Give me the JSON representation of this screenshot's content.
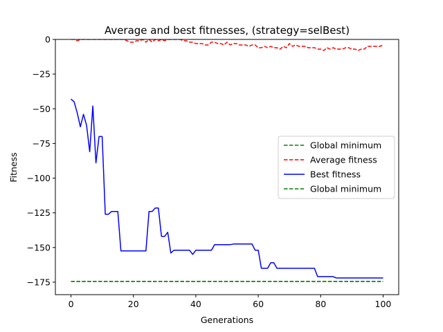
{
  "chart_data": {
    "type": "line",
    "title": "Average and best fitnesses, (strategy=selBest)",
    "xlabel": "Generations",
    "ylabel": "Fitness",
    "xlim": [
      -5,
      105
    ],
    "ylim": [
      -184,
      0
    ],
    "xticks": [
      0,
      20,
      40,
      60,
      80,
      100
    ],
    "yticks": [
      0,
      -25,
      -50,
      -75,
      -100,
      -125,
      -150,
      -175
    ],
    "ytick_labels": [
      "0",
      "−25",
      "−50",
      "−75",
      "−100",
      "−125",
      "−150",
      "−175"
    ],
    "grid": false,
    "legend_position": "center-right",
    "series": [
      {
        "name": "Global minimum",
        "style": "dashed",
        "color": "#008000",
        "x": [
          0,
          100
        ],
        "y": [
          -174.5,
          -174.5
        ]
      },
      {
        "name": "Average fitness",
        "style": "dashed",
        "color": "#ff0000",
        "x": [
          0,
          1,
          2,
          3,
          4,
          5,
          6,
          7,
          8,
          9,
          10,
          11,
          12,
          13,
          14,
          15,
          16,
          17,
          18,
          19,
          20,
          21,
          22,
          23,
          24,
          25,
          26,
          27,
          28,
          29,
          30,
          31,
          32,
          33,
          34,
          35,
          36,
          37,
          38,
          39,
          40,
          41,
          42,
          43,
          44,
          45,
          46,
          47,
          48,
          49,
          50,
          51,
          52,
          53,
          54,
          55,
          56,
          57,
          58,
          59,
          60,
          61,
          62,
          63,
          64,
          65,
          66,
          67,
          68,
          69,
          70,
          71,
          72,
          73,
          74,
          75,
          76,
          77,
          78,
          79,
          80,
          81,
          82,
          83,
          84,
          85,
          86,
          87,
          88,
          89,
          90,
          91,
          92,
          93,
          94,
          95,
          96,
          97,
          98,
          99,
          100
        ],
        "y": [
          0,
          0,
          -1,
          0,
          0,
          0,
          0,
          0,
          0,
          0,
          0,
          0,
          0,
          0,
          0,
          0,
          0,
          0,
          -1,
          -2,
          -2,
          -1,
          -1,
          0,
          -2,
          0,
          -2,
          0,
          -1,
          0,
          -1,
          0,
          0,
          0,
          0,
          0,
          -1,
          -1,
          -2,
          -2,
          -3,
          -3,
          -3,
          -4,
          -4,
          -2,
          -2,
          -3,
          -3,
          -4,
          -2,
          -4,
          -3,
          -3,
          -4,
          -4,
          -4,
          -5,
          -4,
          -4,
          -6,
          -6,
          -5,
          -6,
          -5,
          -6,
          -6,
          -7,
          -5,
          -6,
          -3,
          -5,
          -4,
          -5,
          -5,
          -5,
          -6,
          -6,
          -6,
          -7,
          -7,
          -8,
          -6,
          -7,
          -6,
          -7,
          -7,
          -7,
          -6,
          -6,
          -7,
          -7,
          -8,
          -7,
          -7,
          -5,
          -5,
          -5,
          -5,
          -5,
          -4
        ]
      },
      {
        "name": "Best fitness",
        "style": "solid",
        "color": "#0000ff",
        "x": [
          0,
          1,
          2,
          3,
          4,
          5,
          6,
          7,
          8,
          9,
          10,
          11,
          12,
          13,
          14,
          15,
          16,
          17,
          18,
          19,
          20,
          21,
          22,
          23,
          24,
          25,
          26,
          27,
          28,
          29,
          30,
          31,
          32,
          33,
          34,
          35,
          36,
          37,
          38,
          39,
          40,
          41,
          42,
          43,
          44,
          45,
          46,
          47,
          48,
          49,
          50,
          51,
          52,
          53,
          54,
          55,
          56,
          57,
          58,
          59,
          60,
          61,
          62,
          63,
          64,
          65,
          66,
          67,
          68,
          69,
          70,
          71,
          72,
          73,
          74,
          75,
          76,
          77,
          78,
          79,
          80,
          81,
          82,
          83,
          84,
          85,
          86,
          87,
          88,
          89,
          90,
          91,
          92,
          93,
          94,
          95,
          96,
          97,
          98,
          99,
          100
        ],
        "y": [
          -43,
          -45,
          -53,
          -63,
          -54,
          -62,
          -81,
          -48,
          -89,
          -70,
          -70,
          -126,
          -126,
          -124,
          -124,
          -124,
          -152.5,
          -152.5,
          -152.5,
          -152.5,
          -152.5,
          -152.5,
          -152.5,
          -152.5,
          -152.5,
          -124,
          -124,
          -121.5,
          -121.5,
          -142,
          -142,
          -139,
          -154,
          -152,
          -152,
          -152,
          -152,
          -152,
          -152,
          -155,
          -152,
          -152,
          -152,
          -152,
          -152,
          -152,
          -148,
          -148,
          -148,
          -148,
          -148,
          -148,
          -147.5,
          -147.5,
          -147.5,
          -147.5,
          -147.5,
          -147.5,
          -147.5,
          -152,
          -152,
          -165,
          -165,
          -165,
          -161,
          -161,
          -165,
          -165,
          -165,
          -165,
          -165,
          -165,
          -165,
          -165,
          -165,
          -165,
          -165,
          -165,
          -165,
          -171,
          -171,
          -171,
          -171,
          -171,
          -171,
          -172,
          -172,
          -172,
          -172,
          -172,
          -172,
          -172,
          -172,
          -172,
          -172,
          -172,
          -172,
          -172,
          -172,
          -172,
          -172
        ]
      },
      {
        "name": "Global minimum",
        "style": "dashed",
        "color": "#008000",
        "x": [
          0,
          100
        ],
        "y": [
          -174.5,
          -174.5
        ]
      }
    ]
  }
}
